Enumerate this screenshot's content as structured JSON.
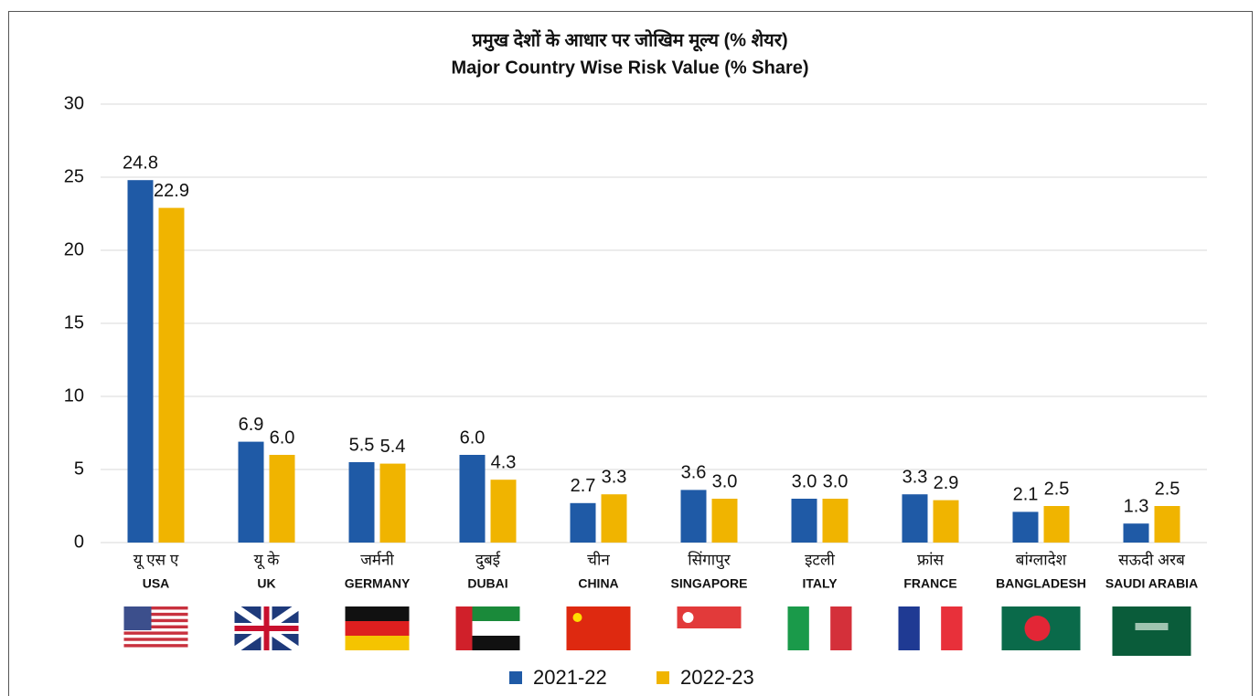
{
  "chart_data": {
    "type": "bar",
    "title": "प्रमुख देशों के आधार पर जोखिम मूल्य (% शेयर)",
    "subtitle": "Major Country Wise Risk Value (% Share)",
    "categories": [
      "USA",
      "UK",
      "GERMANY",
      "DUBAI",
      "CHINA",
      "SINGAPORE",
      "ITALY",
      "FRANCE",
      "BANGLADESH",
      "SAUDI ARABIA"
    ],
    "categories_hindi": [
      "यू एस ए",
      "यू के",
      "जर्मनी",
      "दुबई",
      "चीन",
      "सिंगापुर",
      "इटली",
      "फ्रांस",
      "बांग्लादेश",
      "सऊदी अरब"
    ],
    "series": [
      {
        "name": "2021-22",
        "color": "#1f5aa6",
        "values": [
          24.8,
          6.9,
          5.5,
          6,
          2.7,
          3.6,
          3,
          3.3,
          2.1,
          1.3
        ],
        "value_labels": [
          "24.8",
          "6.9",
          "5.5",
          "6.0",
          "2.7",
          "3.6",
          "3.0",
          "3.3",
          "2.1",
          "1.3"
        ]
      },
      {
        "name": "2022-23",
        "color": "#f0b400",
        "values": [
          22.9,
          6,
          5.4,
          4.3,
          3.3,
          3,
          3,
          2.9,
          2.5,
          2.5
        ],
        "value_labels": [
          "22.9",
          "6.0",
          "5.4",
          "4.3",
          "3.3",
          "3.0",
          "3.0",
          "2.9",
          "2.5",
          "2.5"
        ]
      }
    ],
    "ylim": [
      0,
      30
    ],
    "yticks": [
      0,
      5,
      10,
      15,
      20,
      25,
      30
    ],
    "grid": true,
    "legend": "bottom"
  }
}
